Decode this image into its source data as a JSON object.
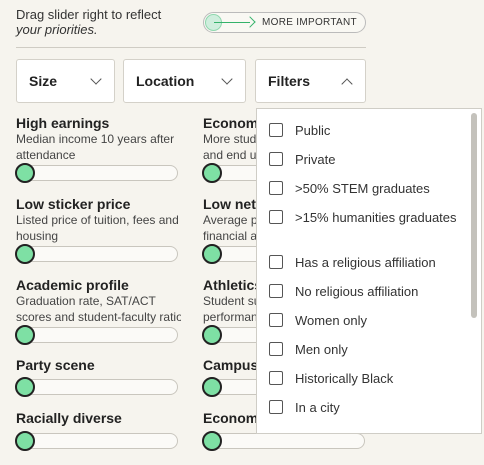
{
  "hint": {
    "line1": "Drag slider right to reflect",
    "line2": "your priorities."
  },
  "legend": {
    "label": "MORE IMPORTANT"
  },
  "filters": [
    {
      "label": "Size",
      "expanded": false
    },
    {
      "label": "Location",
      "expanded": false
    },
    {
      "label": "Filters",
      "expanded": true
    }
  ],
  "factors": [
    {
      "title": "High earnings",
      "desc": [
        "Median income 10 years after",
        "attendance"
      ],
      "value": 0
    },
    {
      "title": "Economi",
      "desc": [
        "More stude",
        "and end up"
      ],
      "value": 0
    },
    {
      "title": "Low sticker price",
      "desc": [
        "Listed price of tuition, fees and",
        "housing"
      ],
      "value": 0
    },
    {
      "title": "Low net p",
      "desc": [
        "Average pr",
        "financial ai"
      ],
      "value": 0
    },
    {
      "title": "Academic profile",
      "desc": [
        "Graduation rate, SAT/ACT",
        "scores and student-faculty ratio"
      ],
      "value": 0
    },
    {
      "title": "Athletics",
      "desc": [
        "Student su",
        "performan"
      ],
      "value": 0
    },
    {
      "title": "Party scene",
      "desc": [],
      "value": 0
    },
    {
      "title": "Campus",
      "desc": [],
      "value": 0
    },
    {
      "title": "Racially diverse",
      "desc": [],
      "value": 0
    },
    {
      "title": "Economi",
      "desc": [],
      "value": 0
    }
  ],
  "dropdown_options": [
    {
      "label": "Public",
      "checked": false
    },
    {
      "label": "Private",
      "checked": false
    },
    {
      "label": ">50% STEM graduates",
      "checked": false
    },
    {
      "label": ">15% humanities graduates",
      "checked": false
    },
    {
      "label": "Has a religious affiliation",
      "checked": false
    },
    {
      "label": "No religious affiliation",
      "checked": false
    },
    {
      "label": "Women only",
      "checked": false
    },
    {
      "label": "Men only",
      "checked": false
    },
    {
      "label": "Historically Black",
      "checked": false
    },
    {
      "label": "In a city",
      "checked": false
    }
  ],
  "colors": {
    "accent": "#7ee0a4",
    "background": "#f6f4ee"
  }
}
